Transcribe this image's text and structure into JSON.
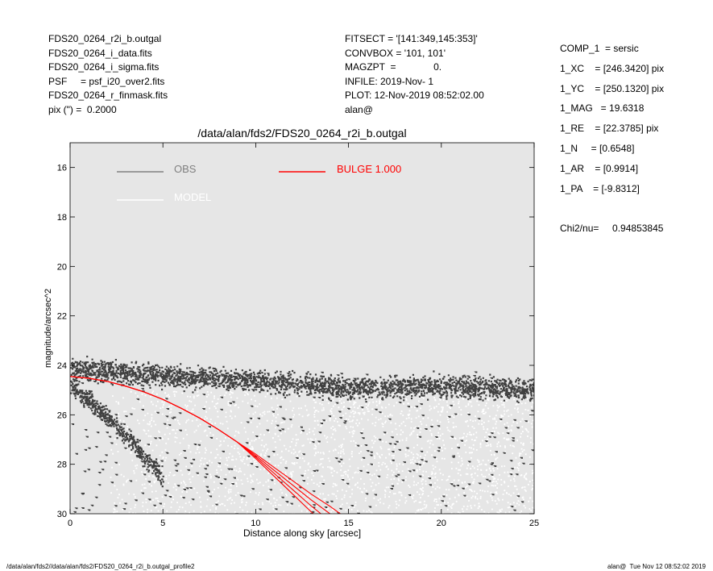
{
  "header": {
    "left": [
      "FDS20_0264_r2i_b.outgal",
      "FDS20_0264_i_data.fits",
      "FDS20_0264_i_sigma.fits",
      "PSF     = psf_i20_over2.fits",
      "FDS20_0264_r_finmask.fits",
      "pix (\") =  0.2000"
    ],
    "middle": [
      "FITSECT = '[141:349,145:353]'",
      "CONVBOX = '101, 101'",
      "MAGZPT  =              0.",
      "INFILE: 2019-Nov- 1",
      "PLOT: 12-Nov-2019 08:52:02.00",
      "alan@"
    ],
    "right": [
      "COMP_1  = sersic",
      "1_XC    = [246.3420] pix",
      "1_YC    = [250.1320] pix",
      "1_MAG   = 19.6318",
      "1_RE    = [22.3785] pix",
      "1_N     = [0.6548]",
      "1_AR    = [0.9914]",
      "1_PA    = [-9.8312]",
      "",
      "Chi2/nu=     0.94853845"
    ]
  },
  "footer": {
    "left": "/data/alan/fds2//data/alan/fds2/FDS20_0264_r2i_b.outgal_profile2",
    "right": "alan@  Tue Nov 12 08:52:02 2019"
  },
  "chart_data": {
    "type": "scatter",
    "title": "/data/alan/fds2/FDS20_0264_r2i_b.outgal",
    "xlabel": "Distance along sky [arcsec]",
    "ylabel": "magnitude/arcsec^2",
    "xlim": [
      0,
      25
    ],
    "ylim": [
      30,
      15
    ],
    "y_inverted": true,
    "xticks": [
      0,
      5,
      10,
      15,
      20,
      25
    ],
    "yticks": [
      16,
      18,
      20,
      22,
      24,
      26,
      28,
      30
    ],
    "grid": false,
    "background_color": "#e6e6e6",
    "legend": [
      {
        "label": "OBS",
        "color": "#808080"
      },
      {
        "label": "MODEL",
        "color": "#ffffff"
      },
      {
        "label": "BULGE  1.000",
        "color": "#ff0000"
      }
    ],
    "series": [
      {
        "name": "OBS",
        "color": "#404040",
        "bands": [
          {
            "x": [
              0,
              2,
              5,
              10,
              15,
              20,
              25
            ],
            "y": [
              24.1,
              24.2,
              24.4,
              24.6,
              24.9,
              24.8,
              25.0
            ],
            "spread": 0.35
          },
          {
            "x": [
              0,
              1,
              2,
              3,
              4,
              5
            ],
            "y": [
              24.8,
              25.4,
              26.1,
              26.8,
              27.7,
              28.6
            ],
            "spread": 0.3
          }
        ],
        "scatter_range": {
          "x": [
            0,
            25
          ],
          "y": [
            24.2,
            30
          ]
        }
      },
      {
        "name": "MODEL",
        "color": "#ffffff",
        "range": {
          "x": [
            2,
            25
          ],
          "y": [
            25,
            30
          ]
        }
      },
      {
        "name": "BULGE  1.000",
        "color": "#ff0000",
        "x": [
          0,
          1,
          2,
          3,
          4,
          5,
          6,
          7,
          8,
          9,
          10,
          11,
          12,
          13,
          14,
          15
        ],
        "y": [
          24.45,
          24.52,
          24.65,
          24.84,
          25.08,
          25.38,
          25.74,
          26.14,
          26.6,
          27.1,
          27.65,
          28.25,
          28.85,
          29.45,
          30.0,
          30.6
        ]
      }
    ]
  }
}
